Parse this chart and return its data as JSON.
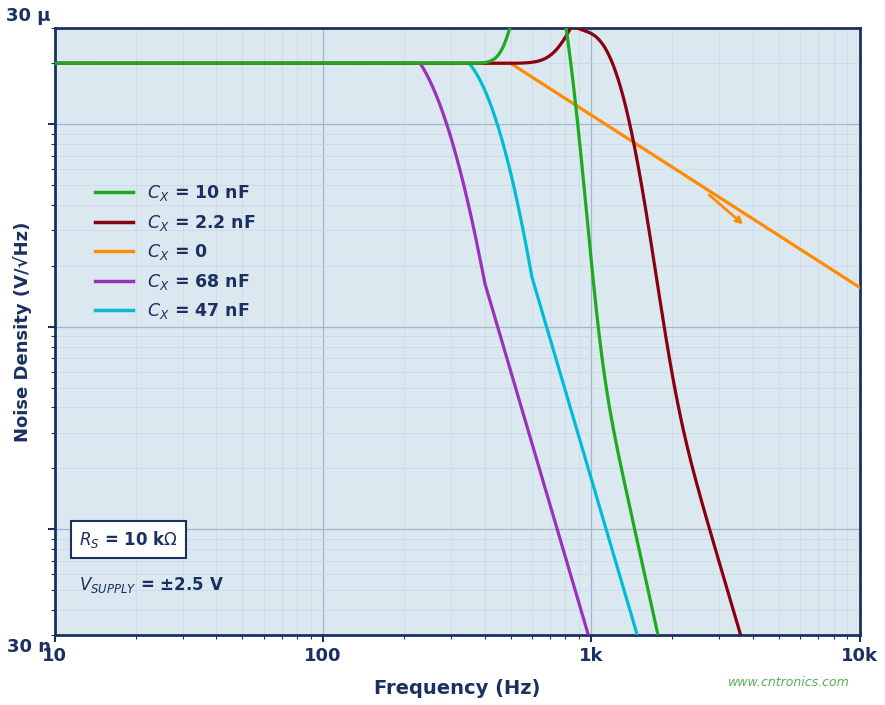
{
  "xlabel": "Frequency (Hz)",
  "ylabel": "Noise Density (V/√Hz)",
  "xlim": [
    10,
    10000
  ],
  "ylim_low": 3e-08,
  "ylim_high": 3e-05,
  "plot_bg": "#dce8f0",
  "grid_major_color": "#a0b8cc",
  "grid_minor_color": "#c5d8e8",
  "axis_color": "#1a3060",
  "text_color": "#1a3060",
  "ytop_label": "30 μ",
  "ybot_label": "30 n",
  "noise_floor": 2e-05,
  "colors": {
    "green": "#1eaa1e",
    "darkred": "#8b0010",
    "orange": "#ff8c00",
    "purple": "#9932bb",
    "cyan": "#00bcd4"
  },
  "legend_entries": [
    {
      "label": "$C_X$ = 10 nF",
      "color_key": "green"
    },
    {
      "label": "$C_X$ = 2.2 nF",
      "color_key": "darkred"
    },
    {
      "label": "$C_X$ = 0",
      "color_key": "orange"
    },
    {
      "label": "$C_X$ = 68 nF",
      "color_key": "purple"
    },
    {
      "label": "$C_X$ = 47 nF",
      "color_key": "cyan"
    }
  ],
  "watermark": "www.cntronics.com",
  "watermark_color": "#5aaa5a"
}
